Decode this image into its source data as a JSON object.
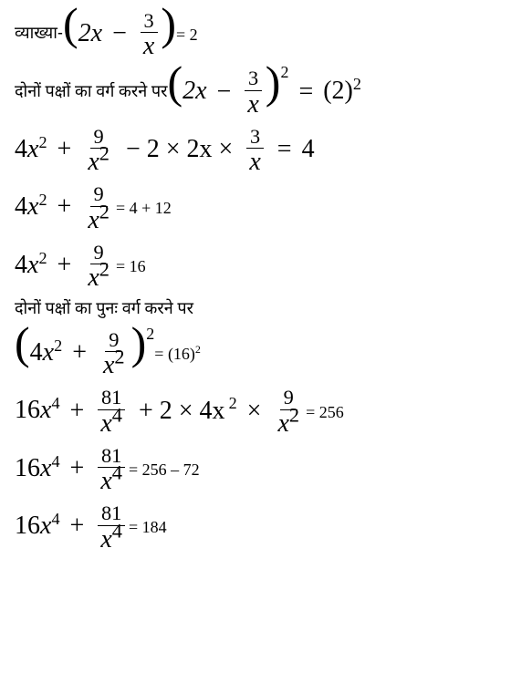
{
  "doc": {
    "background_color": "#ffffff",
    "text_color": "#000000",
    "math_font": "Cambria Math",
    "hindi_font": "Noto Sans Devanagari",
    "math_fontsize_pt": 21,
    "small_math_fontsize_pt": 14,
    "hindi_fontsize_pt": 14
  },
  "lines": {
    "l1_prefix": "व्याख्या- ",
    "l1_expr_lparen": "(",
    "l1_expr_a": "2x",
    "l1_expr_op": " − ",
    "l1_expr_frac_num": "3",
    "l1_expr_frac_den": "x",
    "l1_expr_rparen": ")",
    "l1_rhs": " = 2",
    "l2_text": "दोनों पक्षों का वर्ग करने पर ",
    "l2_lparen": "(",
    "l2_a": "2x",
    "l2_op": " − ",
    "l2_frac_num": "3",
    "l2_frac_den": "x",
    "l2_rparen": ")",
    "l2_exp": "2",
    "l2_eq": " = ",
    "l2_rhs_base": "(2)",
    "l2_rhs_exp": "2",
    "l3_a": "4x",
    "l3_a_exp": "2",
    "l3_op1": " + ",
    "l3_frac1_num": "9",
    "l3_frac1_den_base": "x",
    "l3_frac1_den_exp": "2",
    "l3_op2": " − 2 × 2x × ",
    "l3_frac2_num": "3",
    "l3_frac2_den": "x",
    "l3_eq": " = ",
    "l3_rhs": "4",
    "l4_a": "4x",
    "l4_a_exp": "2",
    "l4_op1": " + ",
    "l4_frac_num": "9",
    "l4_frac_den_base": "x",
    "l4_frac_den_exp": "2",
    "l4_rhs": " = 4 + 12",
    "l5_a": "4x",
    "l5_a_exp": "2",
    "l5_op1": " + ",
    "l5_frac_num": "9",
    "l5_frac_den_base": "x",
    "l5_frac_den_exp": "2",
    "l5_rhs": " = 16",
    "l6_text": "दोनों पक्षों का पुनः वर्ग करने पर",
    "l7_lparen": "(",
    "l7_a": "4x",
    "l7_a_exp": "2",
    "l7_op": " + ",
    "l7_frac_num": "9",
    "l7_frac_den_base": "x",
    "l7_frac_den_exp": "2",
    "l7_rparen": ")",
    "l7_outer_exp": "2",
    "l7_rhs_eq": " = ",
    "l7_rhs_base": "(16)",
    "l7_rhs_exp": "2",
    "l8_a": "16x",
    "l8_a_exp": "4",
    "l8_op1": " + ",
    "l8_frac1_num": "81",
    "l8_frac1_den_base": "x",
    "l8_frac1_den_exp": "4",
    "l8_op2": " + 2 × 4x",
    "l8_mid_exp": "2",
    "l8_op3": " × ",
    "l8_frac2_num": "9",
    "l8_frac2_den_base": "x",
    "l8_frac2_den_exp": "2",
    "l8_rhs": " = 256",
    "l9_a": "16x",
    "l9_a_exp": "4",
    "l9_op1": " + ",
    "l9_frac_num": "81",
    "l9_frac_den_base": "x",
    "l9_frac_den_exp": "4",
    "l9_rhs": " = 256 – 72",
    "l10_a": "16x",
    "l10_a_exp": "4",
    "l10_op1": " + ",
    "l10_frac_num": "81",
    "l10_frac_den_base": "x",
    "l10_frac_den_exp": "4",
    "l10_rhs": " = 184"
  }
}
